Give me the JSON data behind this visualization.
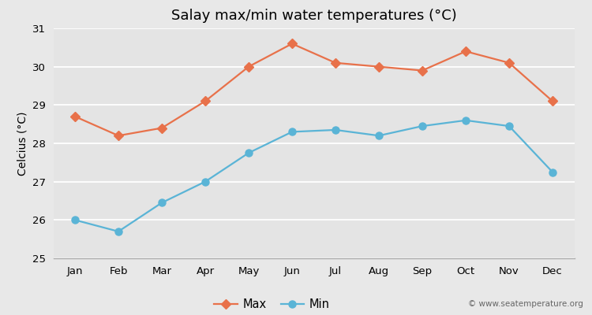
{
  "title": "Salay max/min water temperatures (°C)",
  "ylabel": "Celcius (°C)",
  "months": [
    "Jan",
    "Feb",
    "Mar",
    "Apr",
    "May",
    "Jun",
    "Jul",
    "Aug",
    "Sep",
    "Oct",
    "Nov",
    "Dec"
  ],
  "max_temps": [
    28.7,
    28.2,
    28.4,
    29.1,
    30.0,
    30.6,
    30.1,
    30.0,
    29.9,
    30.4,
    30.1,
    29.1
  ],
  "min_temps": [
    26.0,
    25.7,
    26.45,
    27.0,
    27.75,
    28.3,
    28.35,
    28.2,
    28.45,
    28.6,
    28.45,
    27.25
  ],
  "max_color": "#e8714a",
  "min_color": "#5ab4d6",
  "bg_color": "#e8e8e8",
  "plot_bg_color": "#e4e4e4",
  "ylim": [
    25,
    31
  ],
  "yticks": [
    25,
    26,
    27,
    28,
    29,
    30,
    31
  ],
  "legend_labels": [
    "Max",
    "Min"
  ],
  "watermark": "© www.seatemperature.org",
  "title_fontsize": 13,
  "axis_label_fontsize": 10,
  "tick_fontsize": 9.5
}
